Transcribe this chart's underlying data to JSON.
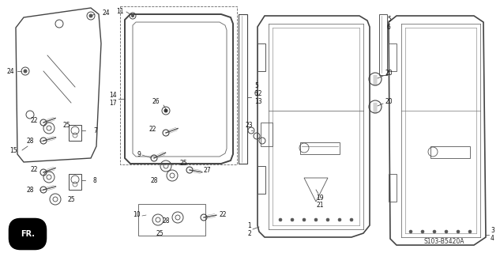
{
  "bg_color": "#ffffff",
  "fig_width": 6.33,
  "fig_height": 3.2,
  "dpi": 100,
  "diagram_code": "S103-B5420A",
  "line_color": "#333333",
  "label_color": "#111111",
  "label_fs": 5.5
}
